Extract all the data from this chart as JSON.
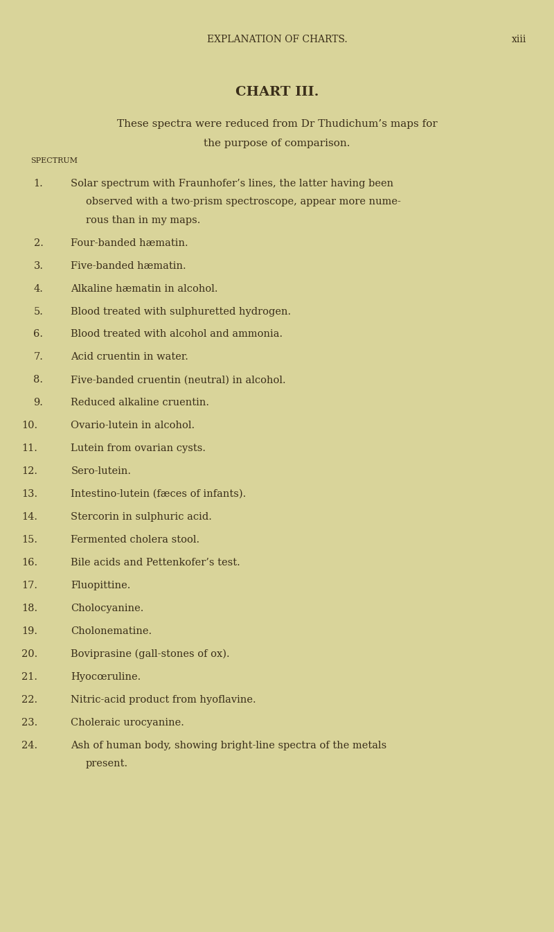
{
  "bg_color": "#d9d49a",
  "header_left": "EXPLANATION OF CHARTS.",
  "header_right": "xiii",
  "title": "CHART III.",
  "subtitle_line1": "These spectra were reduced from Dr Thudichum’s maps for",
  "subtitle_line2": "the purpose of comparison.",
  "spectrum_label": "SPECTRUM",
  "items": [
    {
      "num": "1.",
      "text": "Solar spectrum with Fraunhofer’s lines, the latter having been\nobserved with a two-prism spectroscope, appear more nume-\nrous than in my maps."
    },
    {
      "num": "2.",
      "text": "Four-banded hæmatin."
    },
    {
      "num": "3.",
      "text": "Five-banded hæmatin."
    },
    {
      "num": "4.",
      "text": "Alkaline hæmatin in alcohol."
    },
    {
      "num": "5.",
      "text": "Blood treated with sulphuretted hydrogen."
    },
    {
      "num": "6.",
      "text": "Blood treated with alcohol and ammonia."
    },
    {
      "num": "7.",
      "text": "Acid cruentin in water."
    },
    {
      "num": "8.",
      "text": "Five-banded cruentin (neutral) in alcohol."
    },
    {
      "num": "9.",
      "text": "Reduced alkaline cruentin."
    },
    {
      "num": "10.",
      "text": "Ovario-lutein in alcohol."
    },
    {
      "num": "11.",
      "text": "Lutein from ovarian cysts."
    },
    {
      "num": "12.",
      "text": "Sero-lutein."
    },
    {
      "num": "13.",
      "text": "Intestino-lutein (fæces of infants)."
    },
    {
      "num": "14.",
      "text": "Stercorin in sulphuric acid."
    },
    {
      "num": "15.",
      "text": "Fermented cholera stool."
    },
    {
      "num": "16.",
      "text": "Bile acids and Pettenkofer’s test."
    },
    {
      "num": "17.",
      "text": "Fluopittine."
    },
    {
      "num": "18.",
      "text": "Cholocyanine."
    },
    {
      "num": "19.",
      "text": "Cholonematine."
    },
    {
      "num": "20.",
      "text": "Boviprasine (gall-stones of ox)."
    },
    {
      "num": "21.",
      "text": "Hyocœruline."
    },
    {
      "num": "22.",
      "text": "Nitric-acid product from hyoflavine."
    },
    {
      "num": "23.",
      "text": "Choleraic urocyanine."
    },
    {
      "num": "24.",
      "text": "Ash of human body, showing bright-line spectra of the metals\npresent."
    }
  ],
  "text_color": "#3a2e1a",
  "header_fontsize": 10,
  "title_fontsize": 14,
  "subtitle_fontsize": 11,
  "spectrum_label_fontsize": 8,
  "item_fontsize": 10.5
}
